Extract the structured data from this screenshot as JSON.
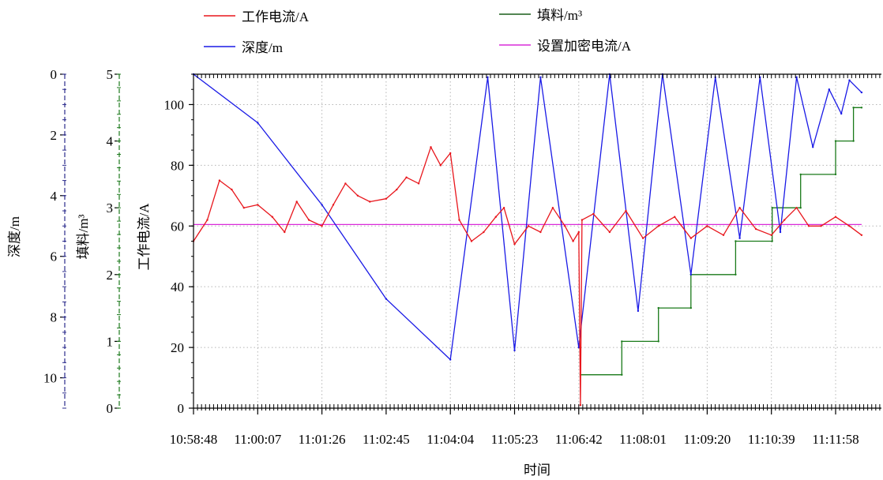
{
  "chart_data": {
    "type": "line",
    "xlabel": "时间",
    "x_ticks": [
      "10:58:48",
      "11:00:07",
      "11:01:26",
      "11:02:45",
      "11:04:04",
      "11:05:23",
      "11:06:42",
      "11:08:01",
      "11:09:20",
      "11:10:39",
      "11:11:58"
    ],
    "x_range": [
      "10:58:48",
      "11:12:30"
    ],
    "grid": true,
    "legend_position": "top",
    "axes": [
      {
        "id": "current",
        "label": "工作电流/A",
        "range": [
          0,
          110
        ],
        "ticks": [
          "0",
          "20",
          "40",
          "60",
          "80",
          "100"
        ],
        "color": "#000000"
      },
      {
        "id": "depth",
        "label": "深度/m",
        "range": [
          0,
          11
        ],
        "inverted": true,
        "ticks": [
          "0",
          "2",
          "4",
          "6",
          "8",
          "10"
        ],
        "color": "#2b2b8c"
      },
      {
        "id": "fill",
        "label": "填料/m³",
        "range": [
          0,
          5
        ],
        "ticks": [
          "0",
          "1",
          "2",
          "3",
          "4",
          "5"
        ],
        "color": "#1d7a1d"
      }
    ],
    "series": [
      {
        "name": "工作电流/A",
        "axis": "current",
        "color": "#e8161c",
        "points": [
          [
            "10:58:48",
            55
          ],
          [
            "10:59:05",
            62
          ],
          [
            "10:59:20",
            75
          ],
          [
            "10:59:35",
            72
          ],
          [
            "10:59:50",
            66
          ],
          [
            "11:00:07",
            67
          ],
          [
            "11:00:25",
            63
          ],
          [
            "11:00:40",
            58
          ],
          [
            "11:00:55",
            68
          ],
          [
            "11:01:10",
            62
          ],
          [
            "11:01:26",
            60
          ],
          [
            "11:01:40",
            67
          ],
          [
            "11:01:55",
            74
          ],
          [
            "11:02:10",
            70
          ],
          [
            "11:02:25",
            68
          ],
          [
            "11:02:45",
            69
          ],
          [
            "11:02:58",
            72
          ],
          [
            "11:03:10",
            76
          ],
          [
            "11:03:25",
            74
          ],
          [
            "11:03:40",
            86
          ],
          [
            "11:03:52",
            80
          ],
          [
            "11:04:04",
            84
          ],
          [
            "11:04:15",
            62
          ],
          [
            "11:04:30",
            55
          ],
          [
            "11:04:45",
            58
          ],
          [
            "11:05:00",
            63
          ],
          [
            "11:05:10",
            66
          ],
          [
            "11:05:23",
            54
          ],
          [
            "11:05:40",
            60
          ],
          [
            "11:05:55",
            58
          ],
          [
            "11:06:10",
            66
          ],
          [
            "11:06:25",
            60
          ],
          [
            "11:06:35",
            55
          ],
          [
            "11:06:42",
            58
          ],
          [
            "11:06:44",
            1
          ],
          [
            "11:06:46",
            62
          ],
          [
            "11:07:00",
            64
          ],
          [
            "11:07:20",
            58
          ],
          [
            "11:07:40",
            65
          ],
          [
            "11:08:01",
            56
          ],
          [
            "11:08:20",
            60
          ],
          [
            "11:08:40",
            63
          ],
          [
            "11:09:00",
            56
          ],
          [
            "11:09:20",
            60
          ],
          [
            "11:09:40",
            57
          ],
          [
            "11:10:00",
            66
          ],
          [
            "11:10:20",
            59
          ],
          [
            "11:10:39",
            57
          ],
          [
            "11:10:55",
            62
          ],
          [
            "11:11:10",
            66
          ],
          [
            "11:11:25",
            60
          ],
          [
            "11:11:40",
            60
          ],
          [
            "11:11:58",
            63
          ],
          [
            "11:12:15",
            60
          ],
          [
            "11:12:30",
            57
          ]
        ]
      },
      {
        "name": "深度/m",
        "axis": "depth",
        "color": "#1a1ae6",
        "points": [
          [
            "10:58:48",
            0
          ],
          [
            "11:00:07",
            1.6
          ],
          [
            "11:01:26",
            4.3
          ],
          [
            "11:02:45",
            7.4
          ],
          [
            "11:04:04",
            9.4
          ],
          [
            "11:04:50",
            0.1
          ],
          [
            "11:05:23",
            9.1
          ],
          [
            "11:05:55",
            0.1
          ],
          [
            "11:06:42",
            9.0
          ],
          [
            "11:07:20",
            0.0
          ],
          [
            "11:07:55",
            7.8
          ],
          [
            "11:08:25",
            0.0
          ],
          [
            "11:09:00",
            6.6
          ],
          [
            "11:09:30",
            0.1
          ],
          [
            "11:10:00",
            5.4
          ],
          [
            "11:10:25",
            0.1
          ],
          [
            "11:10:50",
            5.2
          ],
          [
            "11:11:10",
            0.1
          ],
          [
            "11:11:30",
            2.4
          ],
          [
            "11:11:50",
            0.5
          ],
          [
            "11:12:05",
            1.3
          ],
          [
            "11:12:15",
            0.2
          ],
          [
            "11:12:30",
            0.6
          ]
        ]
      },
      {
        "name": "填料/m³",
        "axis": "fill",
        "color": "#1a7a1a",
        "points": [
          [
            "11:06:44",
            0.5
          ],
          [
            "11:07:35",
            0.5
          ],
          [
            "11:07:35",
            1.0
          ],
          [
            "11:08:20",
            1.0
          ],
          [
            "11:08:20",
            1.5
          ],
          [
            "11:09:00",
            1.5
          ],
          [
            "11:09:00",
            2.0
          ],
          [
            "11:09:55",
            2.0
          ],
          [
            "11:09:55",
            2.5
          ],
          [
            "11:10:40",
            2.5
          ],
          [
            "11:10:40",
            3.0
          ],
          [
            "11:11:15",
            3.0
          ],
          [
            "11:11:15",
            3.5
          ],
          [
            "11:11:58",
            3.5
          ],
          [
            "11:11:58",
            4.0
          ],
          [
            "11:12:20",
            4.0
          ],
          [
            "11:12:20",
            4.5
          ],
          [
            "11:12:30",
            4.5
          ]
        ]
      },
      {
        "name": "设置加密电流/A",
        "axis": "current",
        "color": "#d92bd9",
        "points": [
          [
            "10:58:48",
            60.5
          ],
          [
            "11:12:30",
            60.5
          ]
        ]
      }
    ]
  }
}
